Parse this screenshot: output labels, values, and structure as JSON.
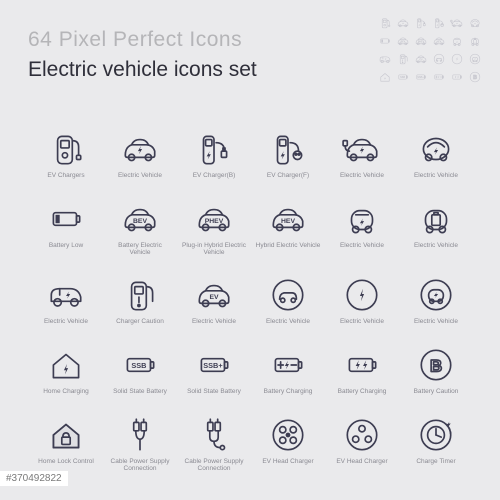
{
  "header": {
    "superhead": "64 Pixel Perfect Icons",
    "title": "Electric vehicle icons set",
    "superhead_color": "#b5b5b8",
    "superhead_fontsize": 21,
    "title_color": "#2f2f3a",
    "title_fontsize": 21
  },
  "style": {
    "background": "#eaeaec",
    "icon_stroke": "#3d3d52",
    "icon_stroke_width": 1.6,
    "preview_stroke": "#c4c4cc",
    "label_color": "#8a8a92",
    "label_fontsize": 6.5
  },
  "stock_id": "#370492822",
  "stock_id_color": "#7a7a7a",
  "stock_id_fontsize": 10,
  "preview_rows": 4,
  "preview_cols": 6,
  "icons": [
    {
      "shape": "charger",
      "label": "EV Chargers"
    },
    {
      "shape": "car",
      "label": "Electric Vehicle"
    },
    {
      "shape": "charger-plug",
      "label": "EV Charger(B)"
    },
    {
      "shape": "charger-plug2",
      "label": "EV Charger(F)"
    },
    {
      "shape": "car-plug",
      "label": "Electric Vehicle"
    },
    {
      "shape": "car-round",
      "label": "Electric Vehicle"
    },
    {
      "shape": "battery-low",
      "label": "Battery Low"
    },
    {
      "shape": "car-bev",
      "label": "Battery Electric Vehicle",
      "text": "BEV"
    },
    {
      "shape": "car-phev",
      "label": "Plug-in Hybrid Electric Vehicle",
      "text": "PHEV"
    },
    {
      "shape": "car-hev",
      "label": "Hybrid Electric Vehicle",
      "text": "HEV"
    },
    {
      "shape": "car-compact",
      "label": "Electric Vehicle"
    },
    {
      "shape": "car-battery",
      "label": "Electric Vehicle"
    },
    {
      "shape": "car-side",
      "label": "Electric Vehicle"
    },
    {
      "shape": "charger-warn",
      "label": "Charger Caution"
    },
    {
      "shape": "car-ev",
      "label": "Electric Vehicle",
      "text": "EV"
    },
    {
      "shape": "circle-car",
      "label": "Electric Vehicle"
    },
    {
      "shape": "circle-bolt",
      "label": "Electric Vehicle"
    },
    {
      "shape": "circle-car2",
      "label": "Electric Vehicle"
    },
    {
      "shape": "house-bolt",
      "label": "Home Charging"
    },
    {
      "shape": "batt-ssb",
      "label": "Solid State Battery",
      "text": "SSB"
    },
    {
      "shape": "batt-ssb-plus",
      "label": "Solid State Battery",
      "text": "SSB+"
    },
    {
      "shape": "batt-charge",
      "label": "Battery Charging"
    },
    {
      "shape": "batt-charge2",
      "label": "Battery Charging"
    },
    {
      "shape": "circle-b",
      "label": "Battery Caution",
      "text": "B"
    },
    {
      "shape": "house-lock",
      "label": "Home Lock Control"
    },
    {
      "shape": "cable1",
      "label": "Cable Power Supply Connection"
    },
    {
      "shape": "cable2",
      "label": "Cable Power Supply Connection"
    },
    {
      "shape": "connector4",
      "label": "EV Head Charger"
    },
    {
      "shape": "connector3",
      "label": "EV Head Charger"
    },
    {
      "shape": "circle-timer",
      "label": "Charge Timer"
    }
  ]
}
